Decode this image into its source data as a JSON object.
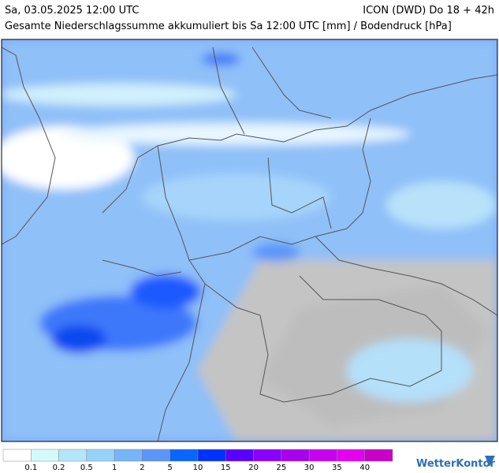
{
  "header": {
    "date": "Sa, 03.05.2025 12:00 UTC",
    "model": "ICON (DWD) Do 18 + 42h",
    "subtitle": "Gesamte Niederschlagssumme akkumuliert bis Sa 12:00 UTC [mm] / Bodendruck [hPa]"
  },
  "legend": {
    "colors": [
      "#ffffff",
      "#d2fafa",
      "#b4e6fa",
      "#96d2fa",
      "#78b4fa",
      "#5a96fa",
      "#0a64ff",
      "#0032ff",
      "#5a00ff",
      "#8c00ff",
      "#aa00f0",
      "#c800f0",
      "#e600f0",
      "#c800c8"
    ],
    "labels": [
      0.1,
      0.2,
      0.5,
      1,
      2,
      5,
      10,
      15,
      20,
      25,
      30,
      35,
      40
    ]
  },
  "logo": "WetterKontor"
}
